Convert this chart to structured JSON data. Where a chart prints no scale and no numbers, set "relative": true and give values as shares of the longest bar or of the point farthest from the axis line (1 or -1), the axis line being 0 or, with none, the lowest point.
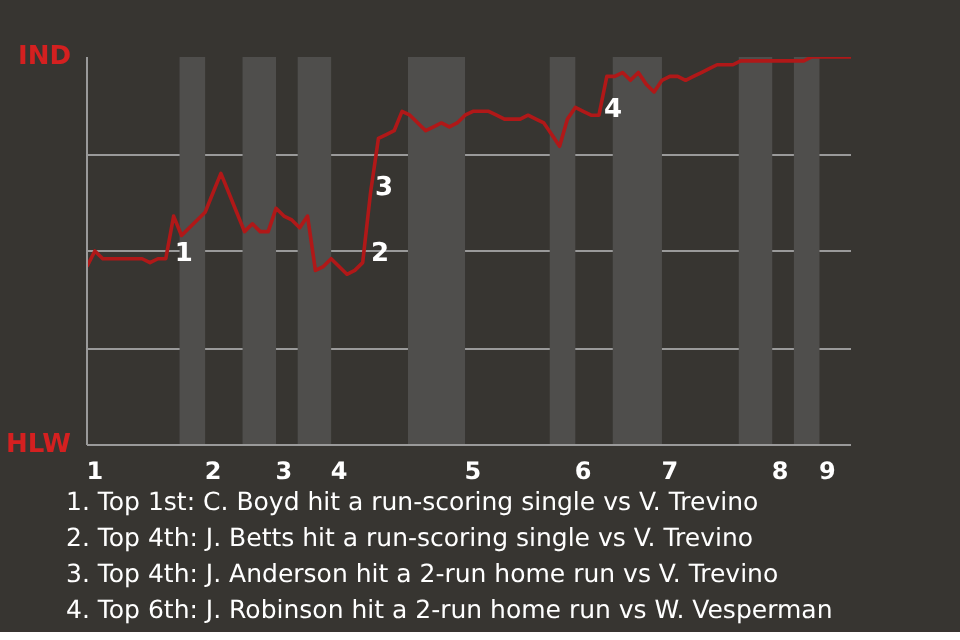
{
  "chart_data": {
    "type": "line",
    "relative": true,
    "categories": [
      null,
      "1",
      null,
      null,
      null,
      null,
      null,
      null,
      null,
      null,
      null,
      null,
      null,
      null,
      null,
      null,
      "2",
      null,
      null,
      null,
      null,
      null,
      null,
      null,
      null,
      "3",
      null,
      null,
      null,
      null,
      null,
      null,
      "4",
      null,
      null,
      null,
      null,
      null,
      null,
      null,
      null,
      null,
      null,
      null,
      null,
      null,
      null,
      null,
      null,
      "5",
      null,
      null,
      null,
      null,
      null,
      null,
      null,
      null,
      null,
      null,
      null,
      null,
      null,
      "6",
      null,
      null,
      null,
      null,
      null,
      null,
      null,
      null,
      null,
      null,
      "7",
      null,
      null,
      null,
      null,
      null,
      null,
      null,
      null,
      null,
      null,
      null,
      null,
      null,
      "8",
      null,
      null,
      null,
      null,
      null,
      "9",
      null,
      null,
      null
    ],
    "series": [
      {
        "color": "#b01818",
        "values": [
          0.46,
          0.5,
          0.48,
          0.48,
          0.48,
          0.48,
          0.48,
          0.48,
          0.47,
          0.48,
          0.48,
          0.59,
          0.54,
          0.56,
          0.58,
          0.6,
          0.65,
          0.7,
          0.65,
          0.6,
          0.55,
          0.57,
          0.55,
          0.55,
          0.61,
          0.59,
          0.58,
          0.56,
          0.59,
          0.45,
          0.46,
          0.48,
          0.46,
          0.44,
          0.45,
          0.47,
          0.65,
          0.79,
          0.8,
          0.81,
          0.86,
          0.85,
          0.83,
          0.81,
          0.82,
          0.83,
          0.82,
          0.83,
          0.85,
          0.86,
          0.86,
          0.86,
          0.85,
          0.84,
          0.84,
          0.84,
          0.85,
          0.84,
          0.83,
          0.8,
          0.77,
          0.84,
          0.87,
          0.86,
          0.85,
          0.85,
          0.95,
          0.95,
          0.96,
          0.94,
          0.96,
          0.93,
          0.91,
          0.94,
          0.95,
          0.95,
          0.94,
          0.95,
          0.96,
          0.97,
          0.98,
          0.98,
          0.98,
          0.99,
          0.99,
          0.99,
          0.99,
          0.99,
          0.99,
          0.99,
          0.99,
          0.99,
          1.0,
          1.0,
          1.0,
          1.0,
          1.0,
          1.0
        ]
      }
    ],
    "grid": "y",
    "annotations": [
      "IND",
      "HLW",
      "1",
      "2",
      "3",
      "4",
      "1. Top 1st: C. Boyd hit a run-scoring single vs V. Trevino",
      "2. Top 4th: J. Betts hit a run-scoring single vs V. Trevino",
      "3. Top 4th: J. Anderson hit a 2-run home run vs V. Trevino",
      "4. Top 6th: J. Robinson hit a 2-run home run vs W. Vesperman"
    ]
  }
}
